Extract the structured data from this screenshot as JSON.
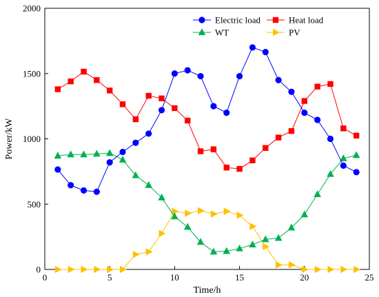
{
  "chart_data": {
    "type": "line",
    "xlabel": "Time/h",
    "ylabel": "Power/kW",
    "xlim": [
      0,
      25
    ],
    "ylim": [
      0,
      2000
    ],
    "xticks": [
      0,
      5,
      10,
      15,
      20,
      25
    ],
    "yticks": [
      0,
      500,
      1000,
      1500,
      2000
    ],
    "grid": false,
    "legend_placement": "top-right",
    "x": [
      1,
      2,
      3,
      4,
      5,
      6,
      7,
      8,
      9,
      10,
      11,
      12,
      13,
      14,
      15,
      16,
      17,
      18,
      19,
      20,
      21,
      22,
      23,
      24
    ],
    "series": [
      {
        "name": "Electric load",
        "color": "#0000ff",
        "marker": "circle",
        "values": [
          765,
          645,
          605,
          595,
          820,
          900,
          970,
          1040,
          1220,
          1500,
          1525,
          1480,
          1250,
          1200,
          1480,
          1700,
          1665,
          1450,
          1360,
          1200,
          1145,
          1000,
          795,
          745
        ]
      },
      {
        "name": "Heat load",
        "color": "#ff0000",
        "marker": "square",
        "values": [
          1380,
          1440,
          1515,
          1450,
          1370,
          1265,
          1150,
          1330,
          1310,
          1235,
          1140,
          905,
          920,
          780,
          770,
          835,
          930,
          1010,
          1060,
          1290,
          1400,
          1420,
          1080,
          1025
        ]
      },
      {
        "name": "WT",
        "color": "#00b050",
        "marker": "triangle-up",
        "values": [
          870,
          880,
          880,
          885,
          890,
          840,
          720,
          645,
          550,
          405,
          325,
          210,
          135,
          140,
          160,
          190,
          230,
          240,
          320,
          420,
          575,
          730,
          850,
          875
        ]
      },
      {
        "name": "PV",
        "color": "#ffc000",
        "marker": "triangle-right",
        "values": [
          0,
          0,
          0,
          0,
          0,
          0,
          115,
          135,
          275,
          445,
          430,
          450,
          425,
          445,
          415,
          330,
          175,
          35,
          35,
          0,
          0,
          0,
          0,
          0
        ]
      }
    ]
  }
}
